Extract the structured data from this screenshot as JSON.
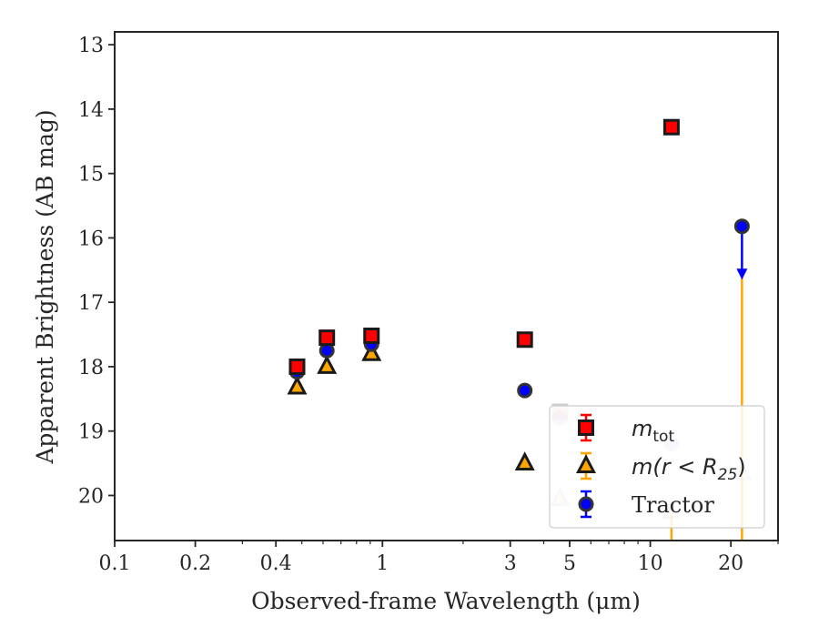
{
  "chart_data": {
    "type": "scatter",
    "xlabel": "Observed-frame Wavelength (μm)",
    "ylabel": "Apparent Brightness (AB mag)",
    "xscale": "log",
    "xlim": [
      0.1,
      30
    ],
    "ylim": [
      20.7,
      12.8
    ],
    "y_inverted": true,
    "grid": false,
    "legend_position": "lower-right",
    "x_ticks": [
      {
        "value": 0.1,
        "label": "0.1"
      },
      {
        "value": 0.2,
        "label": "0.2"
      },
      {
        "value": 0.4,
        "label": "0.4"
      },
      {
        "value": 1,
        "label": "1"
      },
      {
        "value": 3,
        "label": "3"
      },
      {
        "value": 5,
        "label": "5"
      },
      {
        "value": 10,
        "label": "10"
      },
      {
        "value": 20,
        "label": "20"
      }
    ],
    "y_ticks": [
      {
        "value": 13,
        "label": "13"
      },
      {
        "value": 14,
        "label": "14"
      },
      {
        "value": 15,
        "label": "15"
      },
      {
        "value": 16,
        "label": "16"
      },
      {
        "value": 17,
        "label": "17"
      },
      {
        "value": 18,
        "label": "18"
      },
      {
        "value": 19,
        "label": "19"
      },
      {
        "value": 20,
        "label": "20"
      }
    ],
    "series": [
      {
        "name": "m_tot",
        "legend_label": {
          "main": "m",
          "sub": "tot"
        },
        "marker": "square",
        "color": "#ff0000",
        "edge": "#1a1a1a",
        "points": [
          {
            "x": 0.48,
            "y": 18.0
          },
          {
            "x": 0.62,
            "y": 17.55
          },
          {
            "x": 0.91,
            "y": 17.52
          },
          {
            "x": 3.4,
            "y": 17.58
          },
          {
            "x": 4.6,
            "y": 18.7,
            "faded": true
          },
          {
            "x": 12,
            "y": 14.28
          }
        ]
      },
      {
        "name": "m(r<R25)",
        "legend_label": {
          "prefix": "m(r < R",
          "sub": "25",
          "suffix": ")"
        },
        "marker": "triangle",
        "color": "#ffa500",
        "edge": "#1a1a1a",
        "points": [
          {
            "x": 0.48,
            "y": 18.32
          },
          {
            "x": 0.62,
            "y": 18.0
          },
          {
            "x": 0.91,
            "y": 17.8
          },
          {
            "x": 3.4,
            "y": 19.5
          },
          {
            "x": 4.6,
            "y": 20.05,
            "faded": true
          },
          {
            "x": 12,
            "y": 20.25,
            "faded": true
          },
          {
            "x": 22,
            "y": 19.65,
            "faded": true
          }
        ]
      },
      {
        "name": "Tractor",
        "marker": "circle",
        "color": "#0000ff",
        "edge": "#1a1a1a",
        "points": [
          {
            "x": 0.48,
            "y": 18.08
          },
          {
            "x": 0.62,
            "y": 17.75
          },
          {
            "x": 0.91,
            "y": 17.65
          },
          {
            "x": 3.4,
            "y": 18.37
          },
          {
            "x": 4.6,
            "y": 18.8,
            "faded": true
          },
          {
            "x": 12,
            "y": 19.2,
            "faded": true
          },
          {
            "x": 22,
            "y": 15.82,
            "upper_limit_to": 16.62
          }
        ]
      }
    ],
    "errorbars": [
      {
        "series": "m(r<R25)",
        "x": 12,
        "y_from": 20.3,
        "y_to": 20.7
      },
      {
        "series": "m(r<R25)",
        "x": 22,
        "y_from": 16.6,
        "y_to": 20.7
      }
    ],
    "legend": [
      {
        "series": "m_tot"
      },
      {
        "series": "m(r<R25)"
      },
      {
        "series": "Tractor",
        "text": "Tractor"
      }
    ]
  }
}
